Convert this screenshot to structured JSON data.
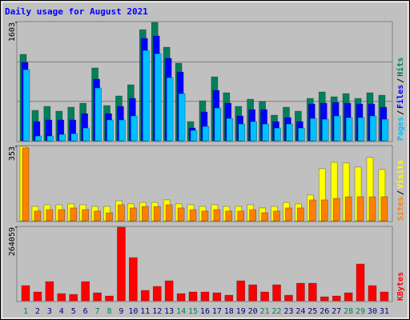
{
  "title": "Daily usage for August 2021",
  "legend_separator": "/",
  "chart_data": [
    {
      "type": "bar",
      "ylim": [
        0,
        1603
      ],
      "yticks": [
        1603
      ],
      "grid_divisions": 3,
      "series": [
        {
          "name": "Hits",
          "color": "#00805c",
          "values": [
            1170,
            412,
            466,
            401,
            455,
            509,
            986,
            477,
            607,
            758,
            1505,
            1603,
            1267,
            1051,
            260,
            542,
            866,
            650,
            466,
            563,
            531,
            347,
            455,
            401,
            574,
            661,
            596,
            639,
            574,
            650,
            617
          ]
        },
        {
          "name": "Files",
          "color": "#0000ff",
          "values": [
            1061,
            260,
            282,
            282,
            282,
            368,
            834,
            368,
            466,
            574,
            1386,
            1419,
            1116,
            931,
            173,
            390,
            682,
            509,
            336,
            422,
            422,
            260,
            314,
            260,
            498,
            509,
            520,
            509,
            498,
            498,
            455
          ]
        },
        {
          "name": "Pages",
          "color": "#00c0ff",
          "values": [
            964,
            65,
            65,
            87,
            97,
            173,
            715,
            282,
            282,
            336,
            1224,
            1180,
            856,
            639,
            141,
            195,
            444,
            303,
            227,
            260,
            227,
            173,
            227,
            173,
            303,
            292,
            336,
            314,
            314,
            336,
            292
          ]
        }
      ]
    },
    {
      "type": "bar",
      "ylim": [
        0,
        353
      ],
      "yticks": [
        353
      ],
      "series": [
        {
          "name": "Visits",
          "color": "#ffff00",
          "values": [
            353,
            68,
            76,
            76,
            80,
            76,
            68,
            68,
            95,
            80,
            87,
            87,
            99,
            80,
            76,
            68,
            76,
            68,
            68,
            76,
            61,
            68,
            87,
            80,
            122,
            247,
            277,
            274,
            255,
            300,
            243
          ]
        },
        {
          "name": "Sites",
          "color": "#ff8000",
          "values": [
            346,
            46,
            53,
            53,
            61,
            53,
            46,
            38,
            76,
            61,
            68,
            68,
            76,
            61,
            53,
            46,
            53,
            46,
            46,
            53,
            38,
            46,
            61,
            61,
            99,
            99,
            106,
            114,
            114,
            114,
            114
          ]
        }
      ]
    },
    {
      "type": "bar",
      "ylim": [
        0,
        264059
      ],
      "yticks": [
        264059
      ],
      "categories": [
        "1",
        "2",
        "3",
        "4",
        "5",
        "6",
        "7",
        "8",
        "9",
        "10",
        "11",
        "12",
        "13",
        "14",
        "15",
        "16",
        "17",
        "18",
        "19",
        "20",
        "21",
        "22",
        "23",
        "24",
        "25",
        "26",
        "27",
        "28",
        "29",
        "30",
        "31"
      ],
      "weekend": [
        true,
        false,
        false,
        false,
        false,
        false,
        true,
        true,
        false,
        false,
        false,
        false,
        false,
        true,
        true,
        false,
        false,
        false,
        false,
        false,
        true,
        true,
        false,
        false,
        false,
        false,
        false,
        true,
        true,
        false,
        false
      ],
      "weekend_color": "#00805c",
      "label_color": "#000080",
      "series": [
        {
          "name": "KBytes",
          "color": "#ff0000",
          "values": [
            54530,
            31570,
            68880,
            25830,
            22960,
            68880,
            28700,
            17220,
            264059,
            155000,
            37310,
            51660,
            71750,
            25830,
            31570,
            31570,
            28700,
            20090,
            71750,
            57400,
            31570,
            57400,
            20090,
            63140,
            63140,
            14350,
            17220,
            28700,
            132020,
            54530,
            31570
          ]
        }
      ]
    }
  ]
}
